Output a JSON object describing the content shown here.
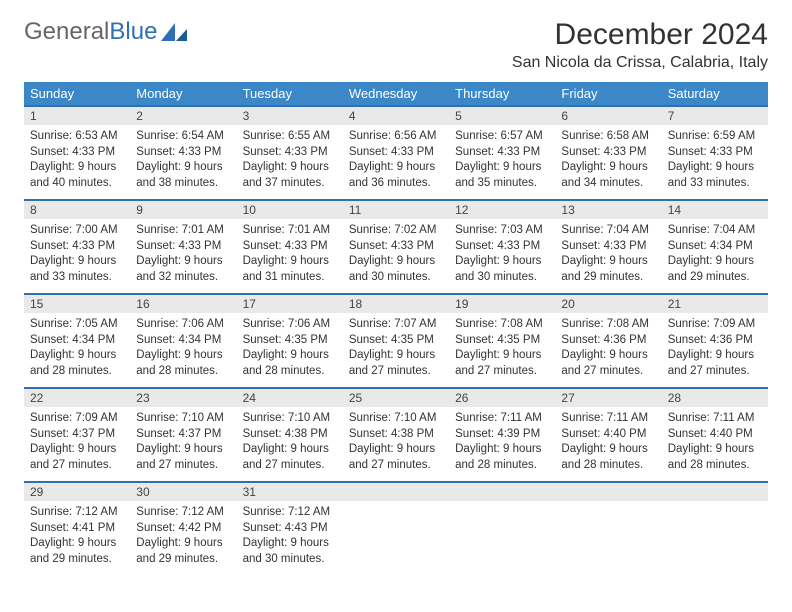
{
  "brand": {
    "part1": "General",
    "part2": "Blue"
  },
  "header": {
    "month_title": "December 2024",
    "location": "San Nicola da Crissa, Calabria, Italy"
  },
  "styling": {
    "header_bg": "#3b87c8",
    "header_text": "#ffffff",
    "daynum_bg": "#e9e9e9",
    "daynum_border_top": "#2f6fb3",
    "body_bg": "#ffffff",
    "text_color": "#333333",
    "font_family": "Arial",
    "month_title_fontsize": 30,
    "location_fontsize": 16,
    "weekday_fontsize": 13,
    "daynum_fontsize": 12,
    "content_fontsize": 11.5,
    "columns": 7,
    "rows": 5
  },
  "weekdays": [
    "Sunday",
    "Monday",
    "Tuesday",
    "Wednesday",
    "Thursday",
    "Friday",
    "Saturday"
  ],
  "weeks": [
    [
      {
        "n": "1",
        "sr": "Sunrise: 6:53 AM",
        "ss": "Sunset: 4:33 PM",
        "d1": "Daylight: 9 hours",
        "d2": "and 40 minutes."
      },
      {
        "n": "2",
        "sr": "Sunrise: 6:54 AM",
        "ss": "Sunset: 4:33 PM",
        "d1": "Daylight: 9 hours",
        "d2": "and 38 minutes."
      },
      {
        "n": "3",
        "sr": "Sunrise: 6:55 AM",
        "ss": "Sunset: 4:33 PM",
        "d1": "Daylight: 9 hours",
        "d2": "and 37 minutes."
      },
      {
        "n": "4",
        "sr": "Sunrise: 6:56 AM",
        "ss": "Sunset: 4:33 PM",
        "d1": "Daylight: 9 hours",
        "d2": "and 36 minutes."
      },
      {
        "n": "5",
        "sr": "Sunrise: 6:57 AM",
        "ss": "Sunset: 4:33 PM",
        "d1": "Daylight: 9 hours",
        "d2": "and 35 minutes."
      },
      {
        "n": "6",
        "sr": "Sunrise: 6:58 AM",
        "ss": "Sunset: 4:33 PM",
        "d1": "Daylight: 9 hours",
        "d2": "and 34 minutes."
      },
      {
        "n": "7",
        "sr": "Sunrise: 6:59 AM",
        "ss": "Sunset: 4:33 PM",
        "d1": "Daylight: 9 hours",
        "d2": "and 33 minutes."
      }
    ],
    [
      {
        "n": "8",
        "sr": "Sunrise: 7:00 AM",
        "ss": "Sunset: 4:33 PM",
        "d1": "Daylight: 9 hours",
        "d2": "and 33 minutes."
      },
      {
        "n": "9",
        "sr": "Sunrise: 7:01 AM",
        "ss": "Sunset: 4:33 PM",
        "d1": "Daylight: 9 hours",
        "d2": "and 32 minutes."
      },
      {
        "n": "10",
        "sr": "Sunrise: 7:01 AM",
        "ss": "Sunset: 4:33 PM",
        "d1": "Daylight: 9 hours",
        "d2": "and 31 minutes."
      },
      {
        "n": "11",
        "sr": "Sunrise: 7:02 AM",
        "ss": "Sunset: 4:33 PM",
        "d1": "Daylight: 9 hours",
        "d2": "and 30 minutes."
      },
      {
        "n": "12",
        "sr": "Sunrise: 7:03 AM",
        "ss": "Sunset: 4:33 PM",
        "d1": "Daylight: 9 hours",
        "d2": "and 30 minutes."
      },
      {
        "n": "13",
        "sr": "Sunrise: 7:04 AM",
        "ss": "Sunset: 4:33 PM",
        "d1": "Daylight: 9 hours",
        "d2": "and 29 minutes."
      },
      {
        "n": "14",
        "sr": "Sunrise: 7:04 AM",
        "ss": "Sunset: 4:34 PM",
        "d1": "Daylight: 9 hours",
        "d2": "and 29 minutes."
      }
    ],
    [
      {
        "n": "15",
        "sr": "Sunrise: 7:05 AM",
        "ss": "Sunset: 4:34 PM",
        "d1": "Daylight: 9 hours",
        "d2": "and 28 minutes."
      },
      {
        "n": "16",
        "sr": "Sunrise: 7:06 AM",
        "ss": "Sunset: 4:34 PM",
        "d1": "Daylight: 9 hours",
        "d2": "and 28 minutes."
      },
      {
        "n": "17",
        "sr": "Sunrise: 7:06 AM",
        "ss": "Sunset: 4:35 PM",
        "d1": "Daylight: 9 hours",
        "d2": "and 28 minutes."
      },
      {
        "n": "18",
        "sr": "Sunrise: 7:07 AM",
        "ss": "Sunset: 4:35 PM",
        "d1": "Daylight: 9 hours",
        "d2": "and 27 minutes."
      },
      {
        "n": "19",
        "sr": "Sunrise: 7:08 AM",
        "ss": "Sunset: 4:35 PM",
        "d1": "Daylight: 9 hours",
        "d2": "and 27 minutes."
      },
      {
        "n": "20",
        "sr": "Sunrise: 7:08 AM",
        "ss": "Sunset: 4:36 PM",
        "d1": "Daylight: 9 hours",
        "d2": "and 27 minutes."
      },
      {
        "n": "21",
        "sr": "Sunrise: 7:09 AM",
        "ss": "Sunset: 4:36 PM",
        "d1": "Daylight: 9 hours",
        "d2": "and 27 minutes."
      }
    ],
    [
      {
        "n": "22",
        "sr": "Sunrise: 7:09 AM",
        "ss": "Sunset: 4:37 PM",
        "d1": "Daylight: 9 hours",
        "d2": "and 27 minutes."
      },
      {
        "n": "23",
        "sr": "Sunrise: 7:10 AM",
        "ss": "Sunset: 4:37 PM",
        "d1": "Daylight: 9 hours",
        "d2": "and 27 minutes."
      },
      {
        "n": "24",
        "sr": "Sunrise: 7:10 AM",
        "ss": "Sunset: 4:38 PM",
        "d1": "Daylight: 9 hours",
        "d2": "and 27 minutes."
      },
      {
        "n": "25",
        "sr": "Sunrise: 7:10 AM",
        "ss": "Sunset: 4:38 PM",
        "d1": "Daylight: 9 hours",
        "d2": "and 27 minutes."
      },
      {
        "n": "26",
        "sr": "Sunrise: 7:11 AM",
        "ss": "Sunset: 4:39 PM",
        "d1": "Daylight: 9 hours",
        "d2": "and 28 minutes."
      },
      {
        "n": "27",
        "sr": "Sunrise: 7:11 AM",
        "ss": "Sunset: 4:40 PM",
        "d1": "Daylight: 9 hours",
        "d2": "and 28 minutes."
      },
      {
        "n": "28",
        "sr": "Sunrise: 7:11 AM",
        "ss": "Sunset: 4:40 PM",
        "d1": "Daylight: 9 hours",
        "d2": "and 28 minutes."
      }
    ],
    [
      {
        "n": "29",
        "sr": "Sunrise: 7:12 AM",
        "ss": "Sunset: 4:41 PM",
        "d1": "Daylight: 9 hours",
        "d2": "and 29 minutes."
      },
      {
        "n": "30",
        "sr": "Sunrise: 7:12 AM",
        "ss": "Sunset: 4:42 PM",
        "d1": "Daylight: 9 hours",
        "d2": "and 29 minutes."
      },
      {
        "n": "31",
        "sr": "Sunrise: 7:12 AM",
        "ss": "Sunset: 4:43 PM",
        "d1": "Daylight: 9 hours",
        "d2": "and 30 minutes."
      },
      {
        "n": "",
        "sr": "",
        "ss": "",
        "d1": "",
        "d2": "",
        "empty": true
      },
      {
        "n": "",
        "sr": "",
        "ss": "",
        "d1": "",
        "d2": "",
        "empty": true
      },
      {
        "n": "",
        "sr": "",
        "ss": "",
        "d1": "",
        "d2": "",
        "empty": true
      },
      {
        "n": "",
        "sr": "",
        "ss": "",
        "d1": "",
        "d2": "",
        "empty": true
      }
    ]
  ]
}
